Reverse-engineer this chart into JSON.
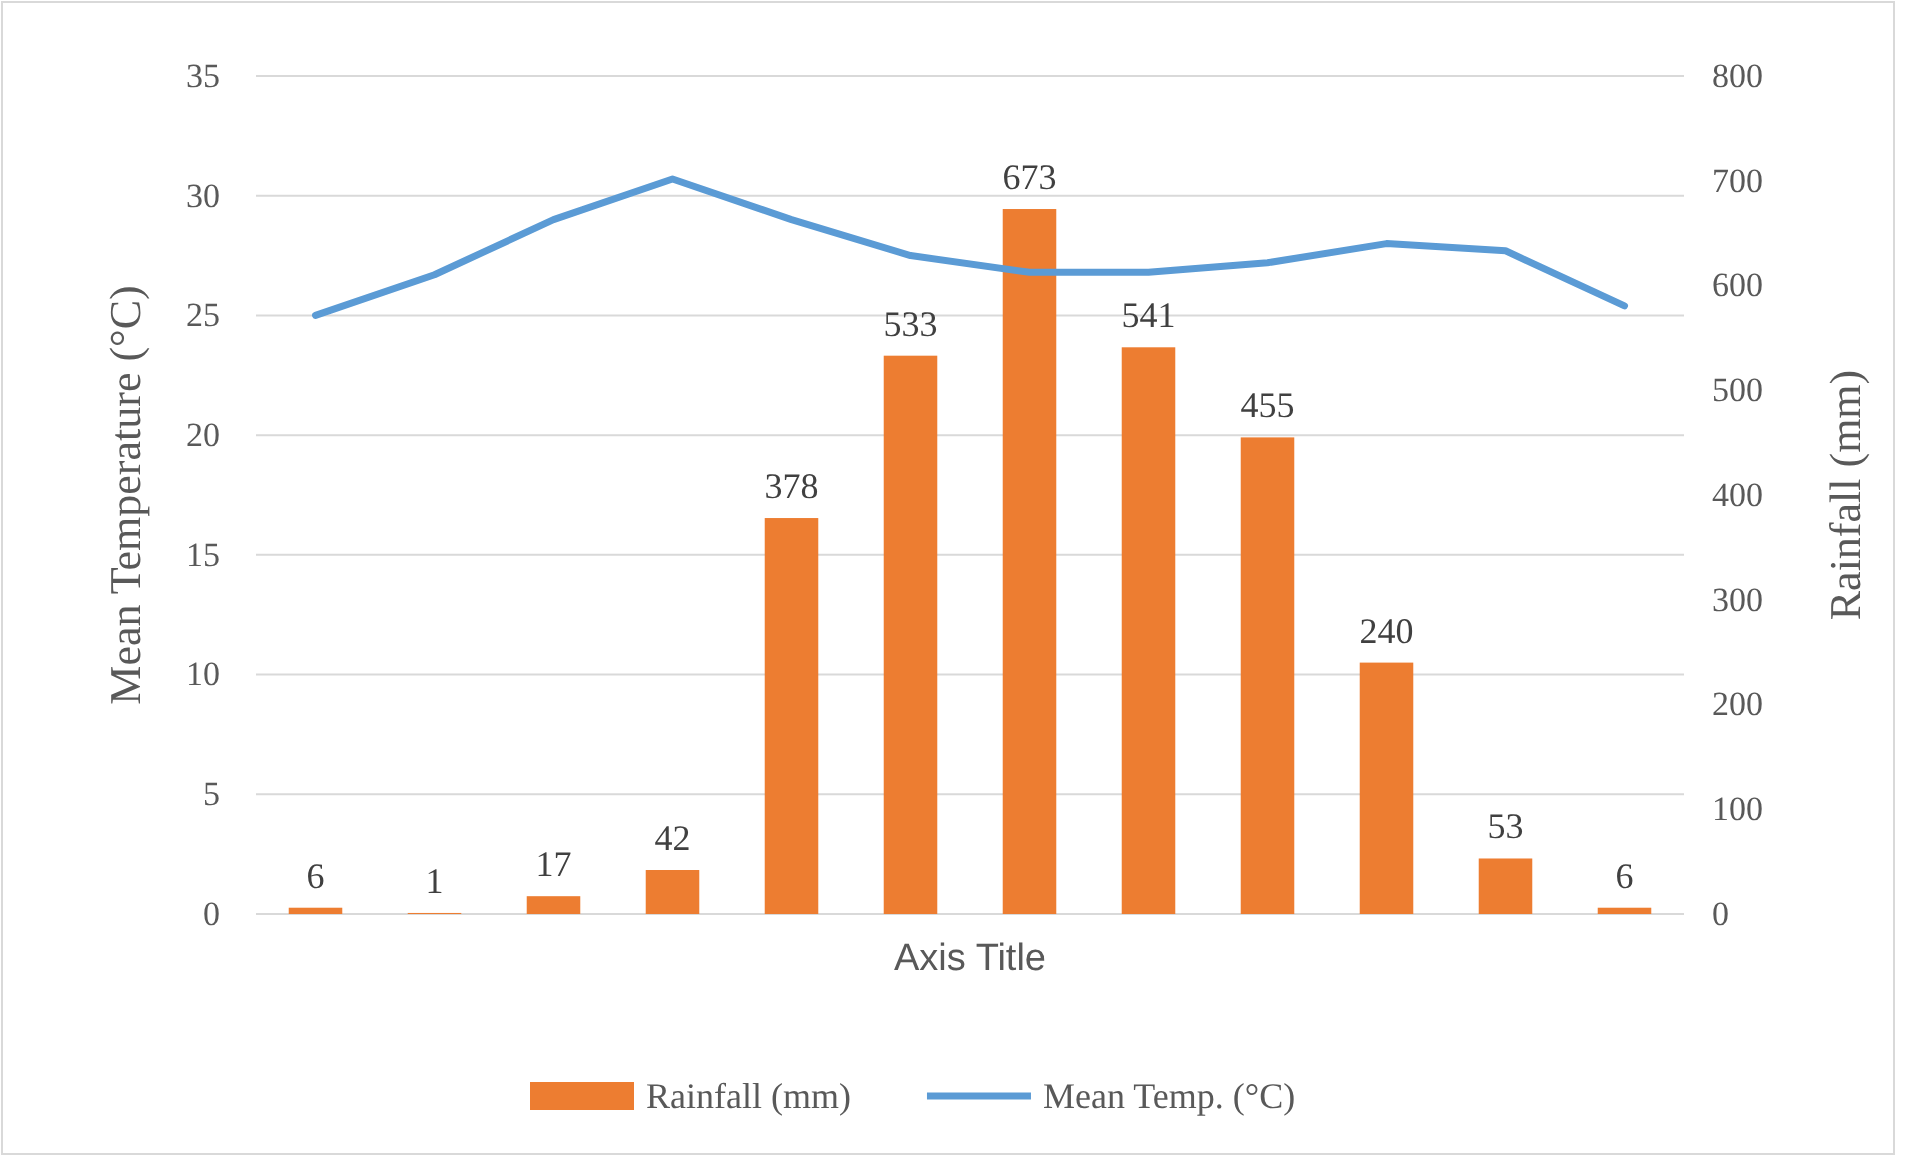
{
  "chart_data": {
    "type": "bar",
    "xlabel": "Axis Title",
    "ylabel": "Mean Temperature (°C)",
    "y2label": "Rainfall (mm)",
    "categories": [
      null,
      null,
      null,
      null,
      null,
      null,
      null,
      null,
      null,
      null,
      null,
      null
    ],
    "series": [
      {
        "name": "Rainfall (mm)",
        "axis": "y2",
        "color": "#ed7d31",
        "values": [
          6,
          1,
          17,
          42,
          378,
          533,
          673,
          541,
          455,
          240,
          53,
          6
        ],
        "value_labels": [
          "6",
          "1",
          "17",
          "42",
          "378",
          "533",
          "673",
          "541",
          "455",
          "240",
          "53",
          "6"
        ]
      },
      {
        "name": "Mean Temp. (°C)",
        "type": "line",
        "color": "#5b9bd5",
        "values": [
          25.0,
          26.7,
          29.0,
          30.7,
          29.0,
          27.5,
          26.8,
          26.8,
          27.2,
          28.0,
          27.7,
          25.4
        ]
      }
    ],
    "ylim": [
      0,
      35
    ],
    "yticks": [
      0,
      5,
      10,
      15,
      20,
      25,
      30,
      35
    ],
    "y2lim": [
      0,
      800
    ],
    "y2ticks": [
      0,
      100,
      200,
      300,
      400,
      500,
      600,
      700,
      800
    ],
    "grid": "y",
    "legend": "bottom",
    "marker": "none",
    "line_style": "solid"
  }
}
